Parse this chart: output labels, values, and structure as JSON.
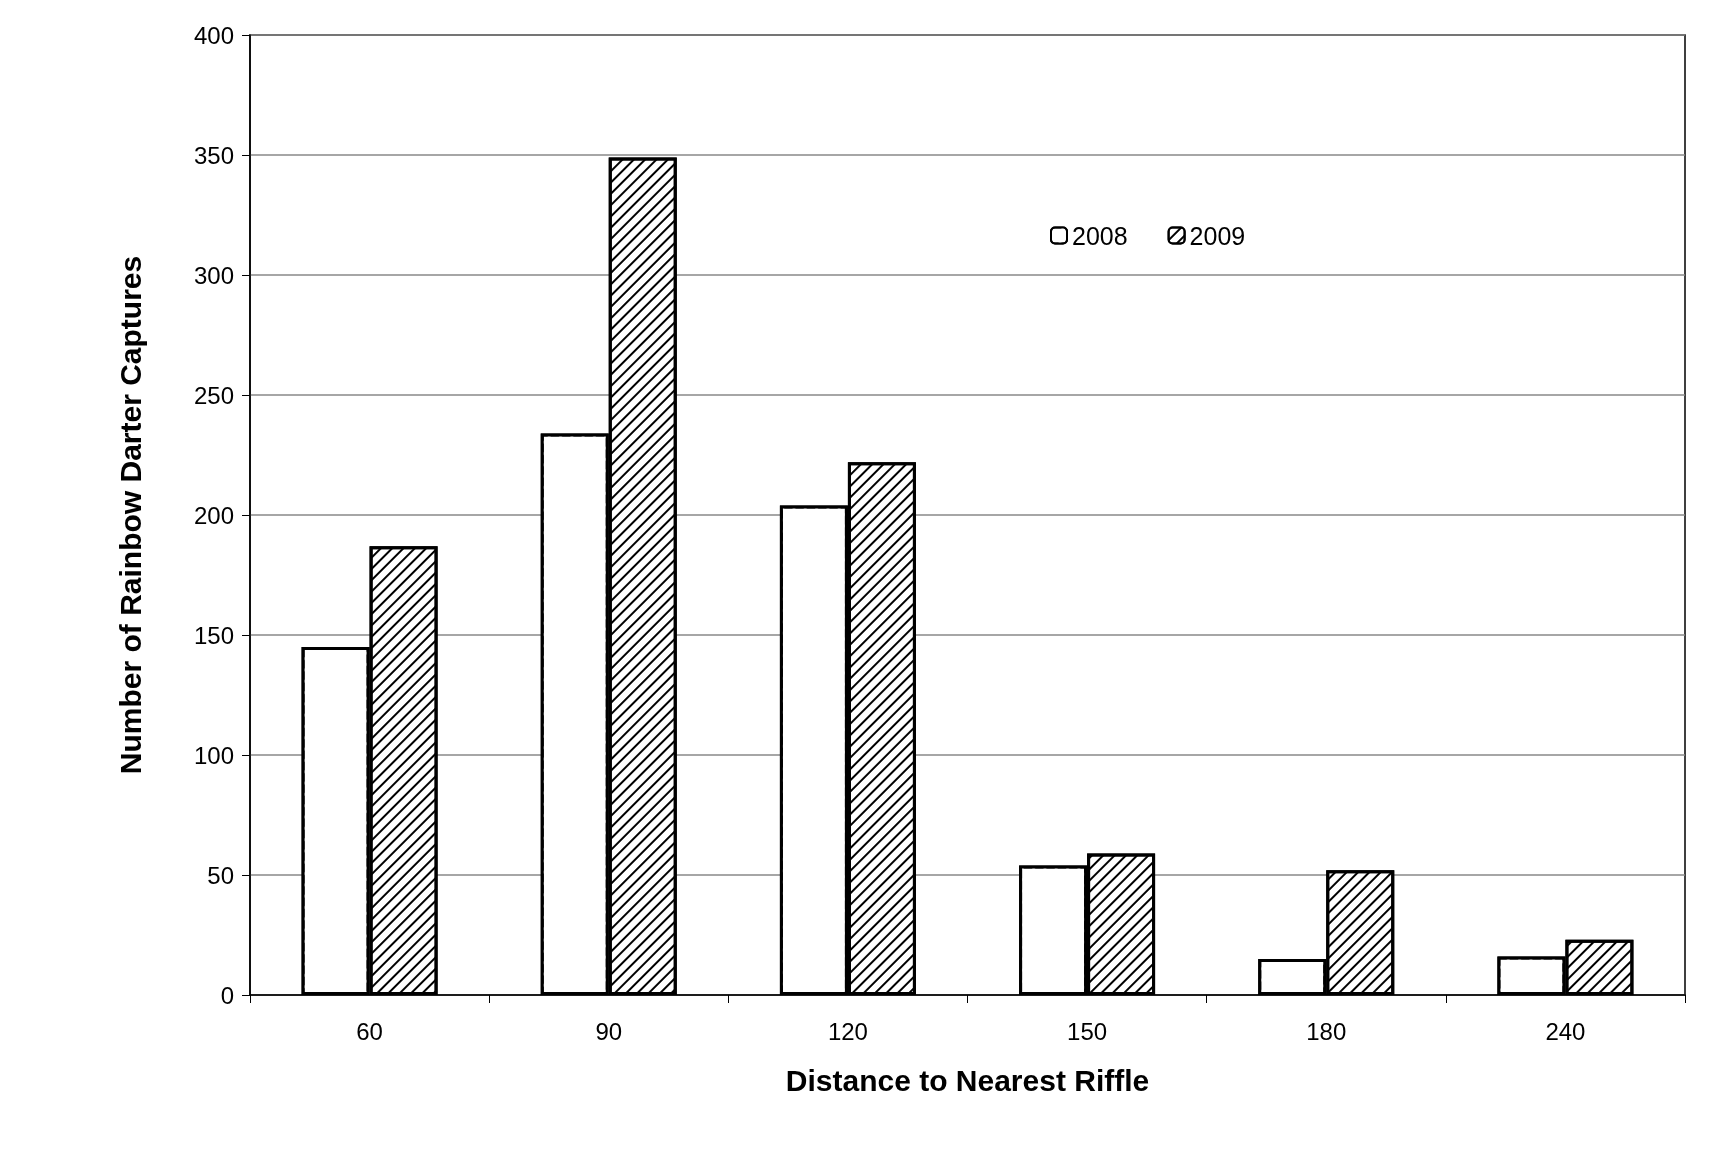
{
  "chart_data": {
    "type": "bar",
    "xlabel": "Distance to Nearest Riffle",
    "ylabel": "Number of Rainbow Darter Captures",
    "categories": [
      "60",
      "90",
      "120",
      "150",
      "180",
      "240"
    ],
    "series": [
      {
        "name": "2008",
        "color": "#ffffff",
        "values": [
          145,
          234,
          204,
          54,
          15,
          16
        ]
      },
      {
        "name": "2009",
        "color": "#000000",
        "values": [
          187,
          349,
          222,
          59,
          52,
          23
        ]
      }
    ],
    "ylim": [
      0,
      400
    ],
    "yticks": [
      0,
      50,
      100,
      150,
      200,
      250,
      300,
      350,
      400
    ],
    "grid": "y",
    "legend": "top right"
  }
}
